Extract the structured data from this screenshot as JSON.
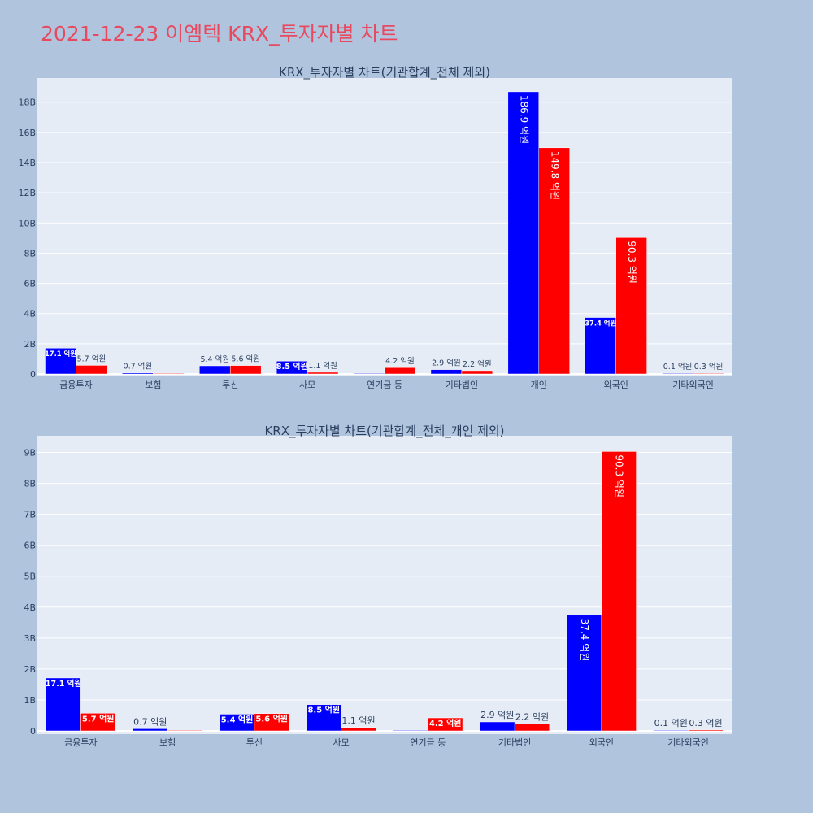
{
  "page": {
    "title": "2021-12-23 이엠텍 KRX_투자자별 차트"
  },
  "colors": {
    "background": "#b0c4de",
    "plot_bg": "#e5ecf6",
    "title": "#e8495f",
    "buy": "#0000ff",
    "sell": "#ff0000"
  },
  "chart_data": [
    {
      "type": "bar",
      "title": "KRX_투자자별 차트(기관합계_전체 제외)",
      "categories": [
        "금융투자",
        "보험",
        "투신",
        "사모",
        "연기금 등",
        "기타법인",
        "개인",
        "외국인",
        "기타외국인"
      ],
      "y_ticks": [
        "0",
        "2B",
        "4B",
        "6B",
        "8B",
        "10B",
        "12B",
        "14B",
        "16B",
        "18B"
      ],
      "ylim": [
        0,
        19600000000
      ],
      "grid": true,
      "series": [
        {
          "color": "#0000ff",
          "values": [
            1710000000,
            70000000,
            540000000,
            850000000,
            0,
            290000000,
            18690000000,
            3740000000,
            10000000
          ],
          "labels": [
            "17.1 억원",
            "0.7 억원",
            "5.4 억원",
            "8.5 억원",
            "",
            "2.9 억원",
            "186.9 억원",
            "37.4 억원",
            "0.1 억원"
          ]
        },
        {
          "color": "#ff0000",
          "values": [
            570000000,
            0,
            560000000,
            110000000,
            420000000,
            220000000,
            14980000000,
            9030000000,
            30000000
          ],
          "labels": [
            "5.7 억원",
            "",
            "5.6 억원",
            "1.1 억원",
            "4.2 억원",
            "2.2 억원",
            "149.8 억원",
            "90.3 억원",
            "0.3 억원"
          ]
        }
      ]
    },
    {
      "type": "bar",
      "title": "KRX_투자자별 차트(기관합계_전체_개인 제외)",
      "categories": [
        "금융투자",
        "보험",
        "투신",
        "사모",
        "연기금 등",
        "기타법인",
        "외국인",
        "기타외국인"
      ],
      "y_ticks": [
        "0",
        "1B",
        "2B",
        "3B",
        "4B",
        "5B",
        "6B",
        "7B",
        "8B",
        "9B"
      ],
      "ylim": [
        0,
        9540000000
      ],
      "grid": true,
      "series": [
        {
          "color": "#0000ff",
          "values": [
            1710000000,
            70000000,
            540000000,
            850000000,
            0,
            290000000,
            3740000000,
            10000000
          ],
          "labels": [
            "17.1 억원",
            "0.7 억원",
            "5.4 억원",
            "8.5 억원",
            "",
            "2.9 억원",
            "37.4 억원",
            "0.1 억원"
          ]
        },
        {
          "color": "#ff0000",
          "values": [
            570000000,
            0,
            560000000,
            110000000,
            420000000,
            220000000,
            9030000000,
            30000000
          ],
          "labels": [
            "5.7 억원",
            "",
            "5.6 억원",
            "1.1 억원",
            "4.2 억원",
            "2.2 억원",
            "90.3 억원",
            "0.3 억원"
          ]
        }
      ]
    }
  ]
}
